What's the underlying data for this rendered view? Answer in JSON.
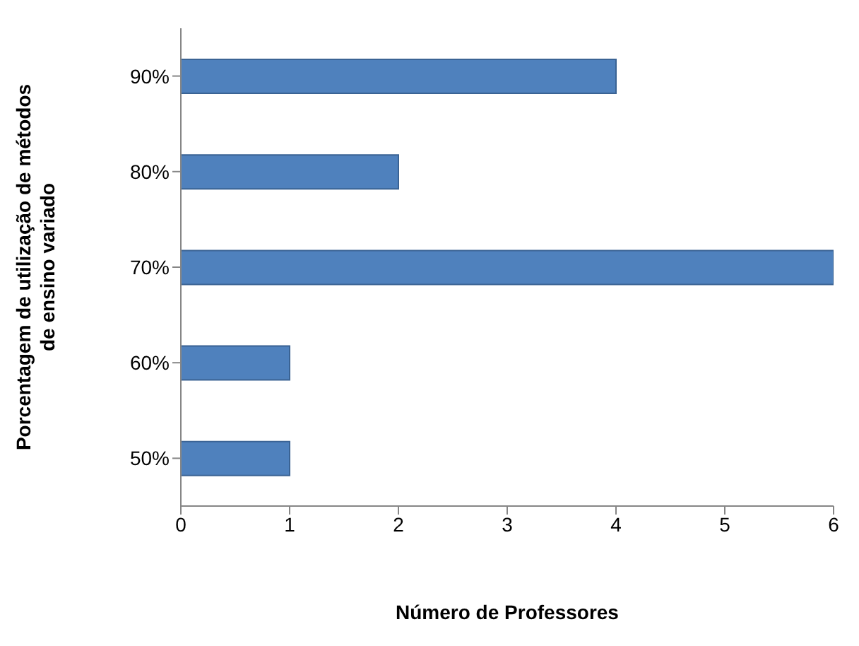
{
  "chart_data": {
    "type": "bar",
    "orientation": "horizontal",
    "categories": [
      "90%",
      "80%",
      "70%",
      "60%",
      "50%"
    ],
    "values": [
      4,
      2,
      6,
      1,
      1
    ],
    "color": "#4f81bd",
    "xlim": [
      0,
      6
    ],
    "xticks": [
      0,
      1,
      2,
      3,
      4,
      5,
      6
    ],
    "xlabel": "Número de Professores",
    "ylabel": "Porcentagem de utilização de métodos de ensino variado",
    "grid": false,
    "legend": false
  }
}
